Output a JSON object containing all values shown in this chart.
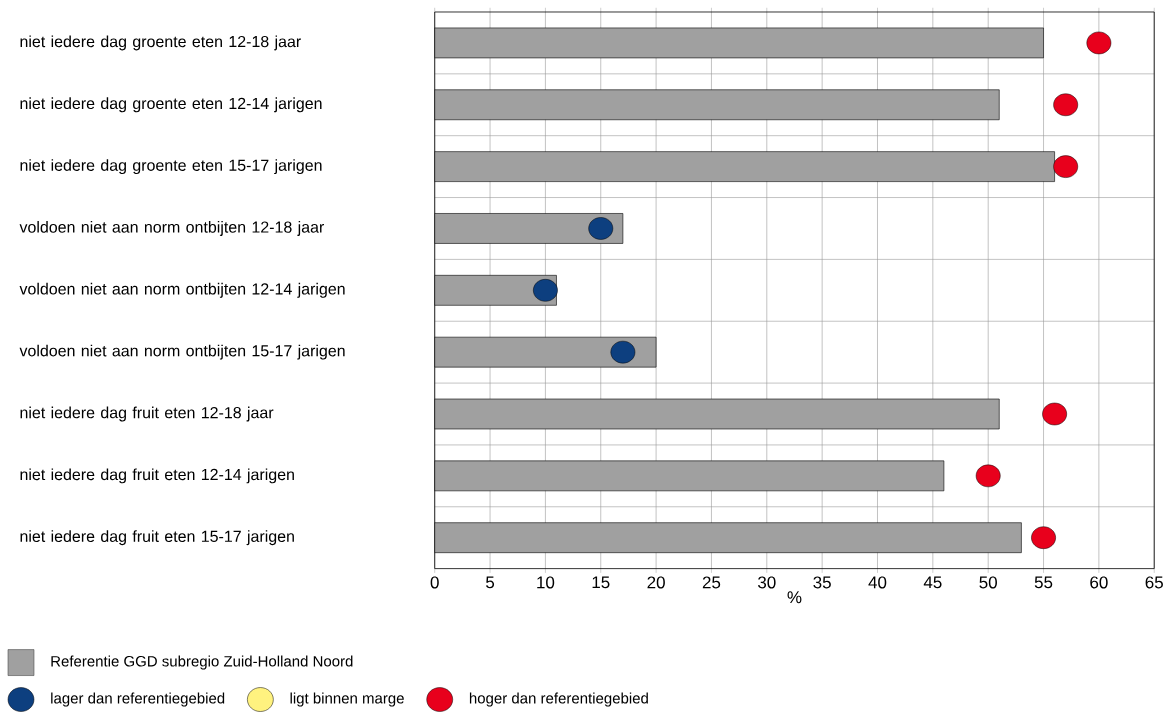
{
  "chart_data": {
    "type": "bar",
    "orientation": "horizontal",
    "categories": [
      "niet iedere dag groente eten 12-18 jaar",
      "niet iedere dag groente eten 12-14 jarigen",
      "niet iedere dag groente eten 15-17 jarigen",
      "voldoen niet aan norm ontbijten 12-18 jaar",
      "voldoen niet aan norm ontbijten 12-14 jarigen",
      "voldoen niet aan norm ontbijten 15-17 jarigen",
      "niet iedere dag fruit eten 12-18 jaar",
      "niet iedere dag fruit eten 12-14 jarigen",
      "niet iedere dag fruit eten 15-17 jarigen"
    ],
    "series": [
      {
        "name": "Referentie  GGD subregio Zuid-Holland Noord",
        "color": "#a0a0a0",
        "values": [
          55,
          51,
          56,
          17,
          11,
          20,
          51,
          46,
          53
        ]
      },
      {
        "name": "lager dan referentiegebied",
        "type": "scatter",
        "color": "#0d3f7f",
        "values": [
          null,
          null,
          null,
          15,
          10,
          17,
          null,
          null,
          null
        ]
      },
      {
        "name": "ligt binnen marge",
        "type": "scatter",
        "color": "#fff27f",
        "values": [
          null,
          null,
          null,
          null,
          null,
          null,
          null,
          null,
          null
        ]
      },
      {
        "name": "hoger dan referentiegebied",
        "type": "scatter",
        "color": "#e8001c",
        "values": [
          60,
          57,
          57,
          null,
          null,
          null,
          56,
          50,
          55
        ]
      }
    ],
    "xlabel": "%",
    "xlim": [
      0,
      65
    ],
    "xticks": [
      0,
      5,
      10,
      15,
      20,
      25,
      30,
      35,
      40,
      45,
      50,
      55,
      60,
      65
    ],
    "grid": true,
    "legend": "bottom left",
    "marker": "circle"
  }
}
